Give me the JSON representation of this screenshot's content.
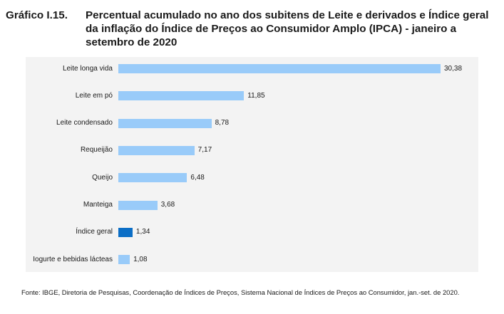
{
  "title": {
    "label": "Gráfico I.15.",
    "text": "Percentual acumulado no ano dos subitens de Leite e derivados e Índice geral da inflação do Índice de Preços ao Consumidor Amplo (IPCA) - janeiro a setembro de 2020"
  },
  "source": "Fonte: IBGE, Diretoria de Pesquisas, Coordenação de Índices de Preços, Sistema Nacional de Índices de Preços ao Consumidor, jan.-set. de 2020.",
  "colors": {
    "bar": "#99cbf9",
    "highlight": "#0b6ec6",
    "panel": "#f3f3f3"
  },
  "chart_data": {
    "type": "bar",
    "orientation": "horizontal",
    "categories": [
      "Leite longa vida",
      "Leite em pó",
      "Leite condensado",
      "Requeijão",
      "Queijo",
      "Manteiga",
      "Índice geral",
      "Iogurte e bebidas lácteas"
    ],
    "values": [
      30.38,
      11.85,
      8.78,
      7.17,
      6.48,
      3.68,
      1.34,
      1.08
    ],
    "value_labels": [
      "30,38",
      "11,85",
      "8,78",
      "7,17",
      "6,48",
      "3,68",
      "1,34",
      "1,08"
    ],
    "highlight_category": "Índice geral",
    "xlim": [
      0,
      30.38
    ],
    "grid": false,
    "legend": "none"
  }
}
